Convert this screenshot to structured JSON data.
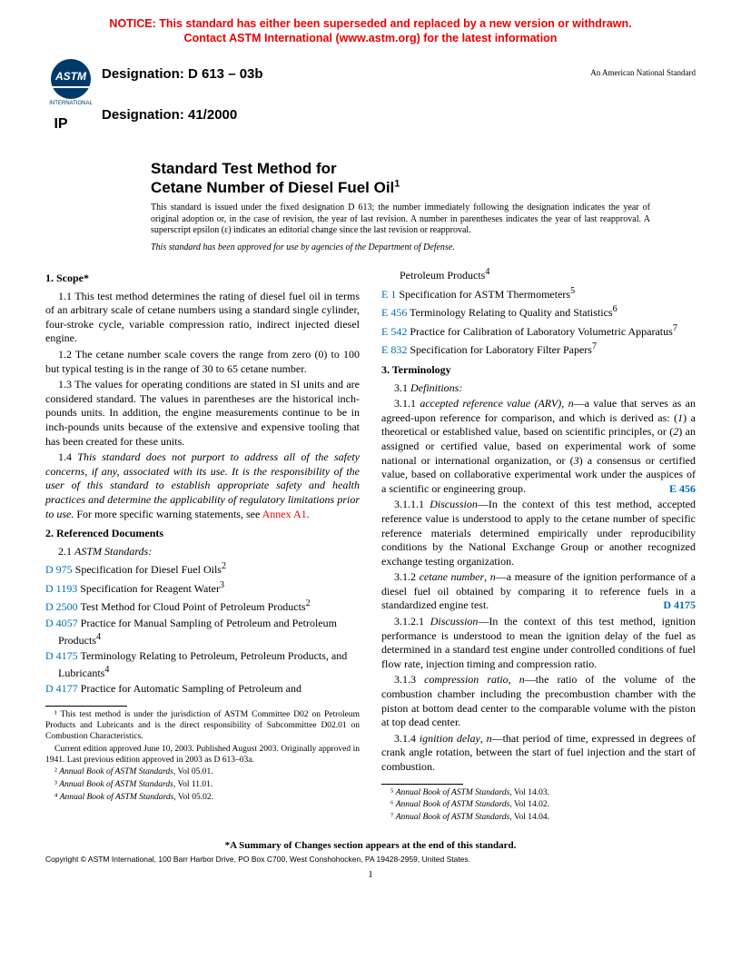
{
  "notice": {
    "line1": "NOTICE: This standard has either been superseded and replaced by a new version or withdrawn.",
    "line2": "Contact ASTM International (www.astm.org) for the latest information"
  },
  "designation1": "Designation: D 613 – 03b",
  "designation2": "Designation: 41/2000",
  "right_note": "An American National Standard",
  "title_line1": "Standard Test Method for",
  "title_line2": "Cetane Number of Diesel Fuel Oil",
  "title_sup": "1",
  "intro1": "This standard is issued under the fixed designation D 613; the number immediately following the designation indicates the year of original adoption or, in the case of revision, the year of last revision. A number in parentheses indicates the year of last reapproval. A superscript epsilon (ε) indicates an editorial change since the last revision or reapproval.",
  "intro2": "This standard has been approved for use by agencies of the Department of Defense.",
  "s1_head": "1. Scope*",
  "s1_1": "1.1 This test method determines the rating of diesel fuel oil in terms of an arbitrary scale of cetane numbers using a standard single cylinder, four-stroke cycle, variable compression ratio, indirect injected diesel engine.",
  "s1_2": "1.2 The cetane number scale covers the range from zero (0) to 100 but typical testing is in the range of 30 to 65 cetane number.",
  "s1_3": "1.3 The values for operating conditions are stated in SI units and are considered standard. The values in parentheses are the historical inch-pounds units. In addition, the engine measurements continue to be in inch-pounds units because of the extensive and expensive tooling that has been created for these units.",
  "s1_4a": "1.4 ",
  "s1_4b": "This standard does not purport to address all of the safety concerns, if any, associated with its use. It is the responsibility of the user of this standard to establish appropriate safety and health practices and determine the applicability of regulatory limitations prior to use.",
  "s1_4c": " For more specific warning statements, see ",
  "s1_4d": "Annex A1",
  "s1_4e": ".",
  "s2_head": "2. Referenced Documents",
  "s2_1": "2.1 ",
  "s2_1b": "ASTM Standards:",
  "refs_left": [
    {
      "id": "D 975",
      "text": " Specification for Diesel Fuel Oils",
      "sup": "2"
    },
    {
      "id": "D 1193",
      "text": " Specification for Reagent Water",
      "sup": "3"
    },
    {
      "id": "D 2500",
      "text": " Test Method for Cloud Point of Petroleum Products",
      "sup": "2"
    },
    {
      "id": "D 4057",
      "text": " Practice for Manual Sampling of Petroleum and Petroleum Products",
      "sup": "4"
    },
    {
      "id": "D 4175",
      "text": " Terminology Relating to Petroleum, Petroleum Products, and Lubricants",
      "sup": "4"
    },
    {
      "id": "D 4177",
      "text": " Practice for Automatic Sampling of Petroleum and",
      "sup": ""
    }
  ],
  "refs_right_cont": "Petroleum Products",
  "refs_right_cont_sup": "4",
  "refs_right": [
    {
      "id": "E 1",
      "text": " Specification for ASTM Thermometers",
      "sup": "5"
    },
    {
      "id": "E 456",
      "text": " Terminology Relating to Quality and Statistics",
      "sup": "6"
    },
    {
      "id": "E 542",
      "text": " Practice for Calibration of Laboratory Volumetric Apparatus",
      "sup": "7"
    },
    {
      "id": "E 832",
      "text": " Specification for Laboratory Filter Papers",
      "sup": "7"
    }
  ],
  "s3_head": "3. Terminology",
  "s3_1": "3.1 ",
  "s3_1b": "Definitions:",
  "s3_1_1a": "3.1.1 ",
  "s3_1_1b": "accepted reference value (ARV)",
  "s3_1_1c": ", ",
  "s3_1_1d": "n",
  "s3_1_1e": "—a value that serves as an agreed-upon reference for comparison, and which is derived as: (",
  "s3_1_1f": "1",
  "s3_1_1g": ") a theoretical or established value, based on scientific principles, or (",
  "s3_1_1h": "2",
  "s3_1_1i": ") an assigned or certified value, based on experimental work of some national or international organization, or (",
  "s3_1_1j": "3",
  "s3_1_1k": ") a consensus or certified value, based on collaborative experimental work under the auspices of a scientific or engineering group.",
  "s3_1_1_ref": "E 456",
  "s3_1_1_1a": "3.1.1.1 ",
  "s3_1_1_1b": "Discussion",
  "s3_1_1_1c": "—In the context of this test method, accepted reference value is understood to apply to the cetane number of specific reference materials determined empirically under reproducibility conditions by the National Exchange Group or another recognized exchange testing organization.",
  "s3_1_2a": "3.1.2 ",
  "s3_1_2b": "cetane number",
  "s3_1_2c": ", ",
  "s3_1_2d": "n",
  "s3_1_2e": "—a measure of the ignition performance of a diesel fuel oil obtained by comparing it to reference fuels in a standardized engine test.",
  "s3_1_2_ref": "D 4175",
  "s3_1_2_1a": "3.1.2.1 ",
  "s3_1_2_1b": "Discussion",
  "s3_1_2_1c": "—In the context of this test method, ignition performance is understood to mean the ignition delay of the fuel as determined in a standard test engine under controlled conditions of fuel flow rate, injection timing and compression ratio.",
  "s3_1_3a": "3.1.3 ",
  "s3_1_3b": "compression ratio",
  "s3_1_3c": ", ",
  "s3_1_3d": "n",
  "s3_1_3e": "—the ratio of the volume of the combustion chamber including the precombustion chamber with the piston at bottom dead center to the comparable volume with the piston at top dead center.",
  "s3_1_4a": "3.1.4 ",
  "s3_1_4b": "ignition delay",
  "s3_1_4c": ", ",
  "s3_1_4d": "n",
  "s3_1_4e": "—that period of time, expressed in degrees of crank angle rotation, between the start of fuel injection and the start of combustion.",
  "fn_left": [
    "¹ This test method is under the jurisdiction of ASTM Committee D02 on Petroleum Products and Lubricants and is the direct responsibility of Subcommittee D02.01 on Combustion Characteristics.",
    "Current edition approved June 10, 2003. Published August 2003. Originally approved in 1941. Last previous edition approved in 2003 as D 613–03a.",
    "² Annual Book of ASTM Standards, Vol 05.01.",
    "³ Annual Book of ASTM Standards, Vol 11.01.",
    "⁴ Annual Book of ASTM Standards, Vol 05.02."
  ],
  "fn_right": [
    "⁵ Annual Book of ASTM Standards, Vol 14.03.",
    "⁶ Annual Book of ASTM Standards, Vol 14.02.",
    "⁷ Annual Book of ASTM Standards, Vol 14.04."
  ],
  "summary": "*A Summary of Changes section appears at the end of this standard.",
  "copyright": "Copyright © ASTM International, 100 Barr Harbor Drive, PO Box C700, West Conshohocken, PA 19428-2959, United States.",
  "page_num": "1",
  "logo_text": "INTERNATIONAL"
}
